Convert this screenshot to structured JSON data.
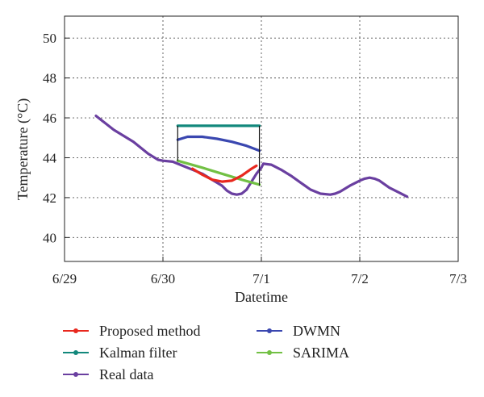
{
  "chart_data": {
    "type": "line",
    "xlabel": "Datetime",
    "ylabel": "Temperature (°C)",
    "x_ticks": [
      {
        "value": 0,
        "label": "6/29"
      },
      {
        "value": 1,
        "label": "6/30"
      },
      {
        "value": 2,
        "label": "7/1"
      },
      {
        "value": 3,
        "label": "7/2"
      },
      {
        "value": 4,
        "label": "7/3"
      }
    ],
    "y_ticks": [
      {
        "value": 40,
        "label": "40"
      },
      {
        "value": 42,
        "label": "42"
      },
      {
        "value": 44,
        "label": "44"
      },
      {
        "value": 46,
        "label": "46"
      },
      {
        "value": 48,
        "label": "48"
      },
      {
        "value": 50,
        "label": "50"
      }
    ],
    "xlim": [
      0,
      4
    ],
    "ylim": [
      38.8,
      51.1
    ],
    "grid": true,
    "legend_position": "bottom",
    "series": [
      {
        "name": "Real data",
        "color": "#6a3fa0",
        "x": [
          0.32,
          0.5,
          0.7,
          0.85,
          0.95,
          1.0,
          1.1,
          1.2,
          1.3,
          1.4,
          1.5,
          1.6,
          1.65,
          1.7,
          1.75,
          1.8,
          1.85,
          1.9,
          1.95,
          2.0,
          2.02,
          2.1,
          2.2,
          2.3,
          2.4,
          2.5,
          2.6,
          2.7,
          2.75,
          2.8,
          2.9,
          3.0,
          3.05,
          3.1,
          3.15,
          3.2,
          3.3,
          3.4,
          3.48
        ],
        "y": [
          46.1,
          45.4,
          44.8,
          44.2,
          43.9,
          43.85,
          43.8,
          43.6,
          43.4,
          43.2,
          42.9,
          42.6,
          42.35,
          42.2,
          42.15,
          42.2,
          42.4,
          42.8,
          43.2,
          43.5,
          43.7,
          43.65,
          43.4,
          43.1,
          42.75,
          42.4,
          42.2,
          42.15,
          42.2,
          42.3,
          42.6,
          42.85,
          42.95,
          43.0,
          42.95,
          42.85,
          42.5,
          42.25,
          42.05
        ]
      },
      {
        "name": "Proposed method",
        "color": "#e8281e",
        "x": [
          1.3,
          1.4,
          1.5,
          1.6,
          1.7,
          1.8,
          1.9,
          1.95
        ],
        "y": [
          43.45,
          43.15,
          42.9,
          42.8,
          42.85,
          43.1,
          43.45,
          43.6
        ]
      },
      {
        "name": "Kalman filter",
        "color": "#12887c",
        "x": [
          1.15,
          1.98
        ],
        "y": [
          45.6,
          45.6
        ]
      },
      {
        "name": "DWMN",
        "color": "#3a47b0",
        "x": [
          1.15,
          1.25,
          1.4,
          1.55,
          1.7,
          1.85,
          1.98
        ],
        "y": [
          44.9,
          45.05,
          45.05,
          44.95,
          44.8,
          44.6,
          44.35
        ]
      },
      {
        "name": "SARIMA",
        "color": "#72c044",
        "x": [
          1.15,
          1.4,
          1.6,
          1.8,
          1.98
        ],
        "y": [
          43.85,
          43.5,
          43.2,
          42.9,
          42.65
        ]
      }
    ],
    "legend": [
      {
        "label": "Proposed method",
        "color": "#e8281e"
      },
      {
        "label": "DWMN",
        "color": "#3a47b0"
      },
      {
        "label": "Kalman filter",
        "color": "#12887c"
      },
      {
        "label": "SARIMA",
        "color": "#72c044"
      },
      {
        "label": "Real data",
        "color": "#6a3fa0"
      }
    ]
  }
}
